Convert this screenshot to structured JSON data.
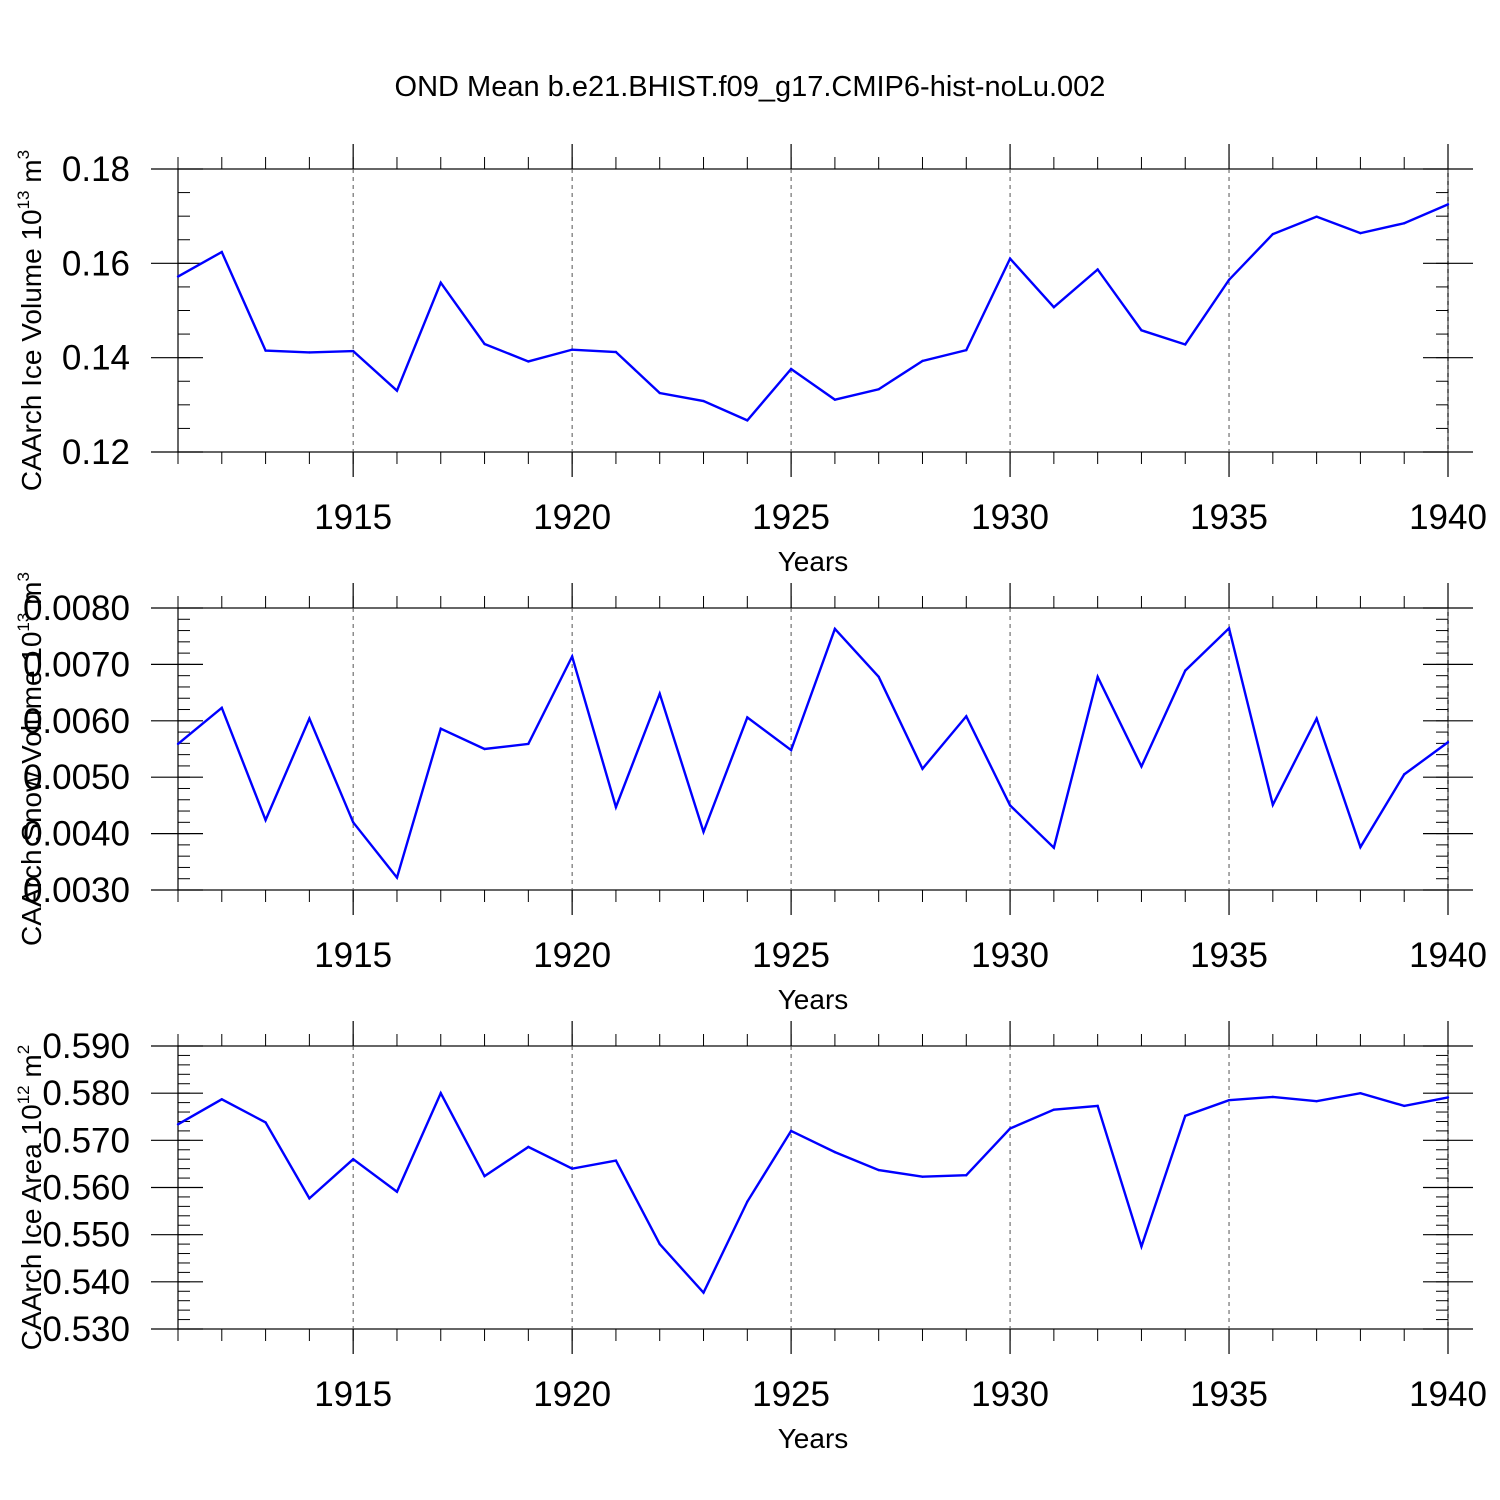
{
  "figure": {
    "title": "OND Mean b.e21.BHIST.f09_g17.CMIP6-hist-noLu.002",
    "line_color": "#0000ff",
    "grid_color": "#555555"
  },
  "chart_data": [
    {
      "type": "line",
      "title": "OND Mean b.e21.BHIST.f09_g17.CMIP6-hist-noLu.002",
      "xlabel": "Years",
      "ylabel": "CAArch Ice Volume 10",
      "ylabel_exp": "13",
      "ylabel_unit": " m",
      "ylabel_unit_exp": "3",
      "xlim": [
        1911,
        1940
      ],
      "ylim": [
        0.12,
        0.18
      ],
      "x_ticks": [
        1915,
        1920,
        1925,
        1930,
        1935,
        1940
      ],
      "x_tick_labels": [
        "1915",
        "1920",
        "1925",
        "1930",
        "1935",
        "1940"
      ],
      "y_ticks": [
        0.12,
        0.14,
        0.16,
        0.18
      ],
      "y_tick_labels": [
        "0.12",
        "0.14",
        "0.16",
        "0.18"
      ],
      "x_minor_step": 1,
      "y_minor_step": 0.005,
      "grid": "vertical dashed at major x ticks",
      "x": [
        1911,
        1912,
        1913,
        1914,
        1915,
        1916,
        1917,
        1918,
        1919,
        1920,
        1921,
        1922,
        1923,
        1924,
        1925,
        1926,
        1927,
        1928,
        1929,
        1930,
        1931,
        1932,
        1933,
        1934,
        1935,
        1936,
        1937,
        1938,
        1939,
        1940
      ],
      "values": [
        0.1572,
        0.1624,
        0.1415,
        0.1411,
        0.1414,
        0.133,
        0.1559,
        0.1429,
        0.1392,
        0.1417,
        0.1412,
        0.1325,
        0.1308,
        0.1267,
        0.1376,
        0.1311,
        0.1333,
        0.1393,
        0.1416,
        0.161,
        0.1507,
        0.1587,
        0.1458,
        0.1428,
        0.1565,
        0.1662,
        0.1699,
        0.1664,
        0.1685,
        0.1725
      ]
    },
    {
      "type": "line",
      "xlabel": "Years",
      "ylabel": "CAArch Snow Volume 10",
      "ylabel_exp": "13",
      "ylabel_unit": " m",
      "ylabel_unit_exp": "3",
      "xlim": [
        1911,
        1940
      ],
      "ylim": [
        0.003,
        0.008
      ],
      "x_ticks": [
        1915,
        1920,
        1925,
        1930,
        1935,
        1940
      ],
      "x_tick_labels": [
        "1915",
        "1920",
        "1925",
        "1930",
        "1935",
        "1940"
      ],
      "y_ticks": [
        0.003,
        0.004,
        0.005,
        0.006,
        0.007,
        0.008
      ],
      "y_tick_labels": [
        "0.0030",
        "0.0040",
        "0.0050",
        "0.0060",
        "0.0070",
        "0.0080"
      ],
      "x_minor_step": 1,
      "y_minor_step": 0.0002,
      "grid": "vertical dashed at major x ticks",
      "x": [
        1911,
        1912,
        1913,
        1914,
        1915,
        1916,
        1917,
        1918,
        1919,
        1920,
        1921,
        1922,
        1923,
        1924,
        1925,
        1926,
        1927,
        1928,
        1929,
        1930,
        1931,
        1932,
        1933,
        1934,
        1935,
        1936,
        1937,
        1938,
        1939,
        1940
      ],
      "values": [
        0.00559,
        0.00623,
        0.00424,
        0.00604,
        0.0042,
        0.00322,
        0.00586,
        0.0055,
        0.00559,
        0.00714,
        0.00447,
        0.00648,
        0.00403,
        0.00606,
        0.00548,
        0.00763,
        0.00678,
        0.00515,
        0.00608,
        0.0045,
        0.00375,
        0.00678,
        0.00519,
        0.00689,
        0.00764,
        0.00451,
        0.00604,
        0.00376,
        0.00505,
        0.00562
      ]
    },
    {
      "type": "line",
      "xlabel": "Years",
      "ylabel": "CAArch Ice Area 10",
      "ylabel_exp": "12",
      "ylabel_unit": " m",
      "ylabel_unit_exp": "2",
      "xlim": [
        1911,
        1940
      ],
      "ylim": [
        0.53,
        0.59
      ],
      "x_ticks": [
        1915,
        1920,
        1925,
        1930,
        1935,
        1940
      ],
      "x_tick_labels": [
        "1915",
        "1920",
        "1925",
        "1930",
        "1935",
        "1940"
      ],
      "y_ticks": [
        0.53,
        0.54,
        0.55,
        0.56,
        0.57,
        0.58,
        0.59
      ],
      "y_tick_labels": [
        "0.530",
        "0.540",
        "0.550",
        "0.560",
        "0.570",
        "0.580",
        "0.590"
      ],
      "x_minor_step": 1,
      "y_minor_step": 0.002,
      "grid": "vertical dashed at major x ticks",
      "x": [
        1911,
        1912,
        1913,
        1914,
        1915,
        1916,
        1917,
        1918,
        1919,
        1920,
        1921,
        1922,
        1923,
        1924,
        1925,
        1926,
        1927,
        1928,
        1929,
        1930,
        1931,
        1932,
        1933,
        1934,
        1935,
        1936,
        1937,
        1938,
        1939,
        1940
      ],
      "values": [
        0.5734,
        0.5787,
        0.5738,
        0.5577,
        0.566,
        0.5591,
        0.58,
        0.5624,
        0.5686,
        0.564,
        0.5657,
        0.548,
        0.5377,
        0.557,
        0.572,
        0.5675,
        0.5637,
        0.5623,
        0.5626,
        0.5725,
        0.5765,
        0.5773,
        0.5475,
        0.5752,
        0.5785,
        0.5792,
        0.5783,
        0.58,
        0.5773,
        0.5791
      ]
    }
  ]
}
